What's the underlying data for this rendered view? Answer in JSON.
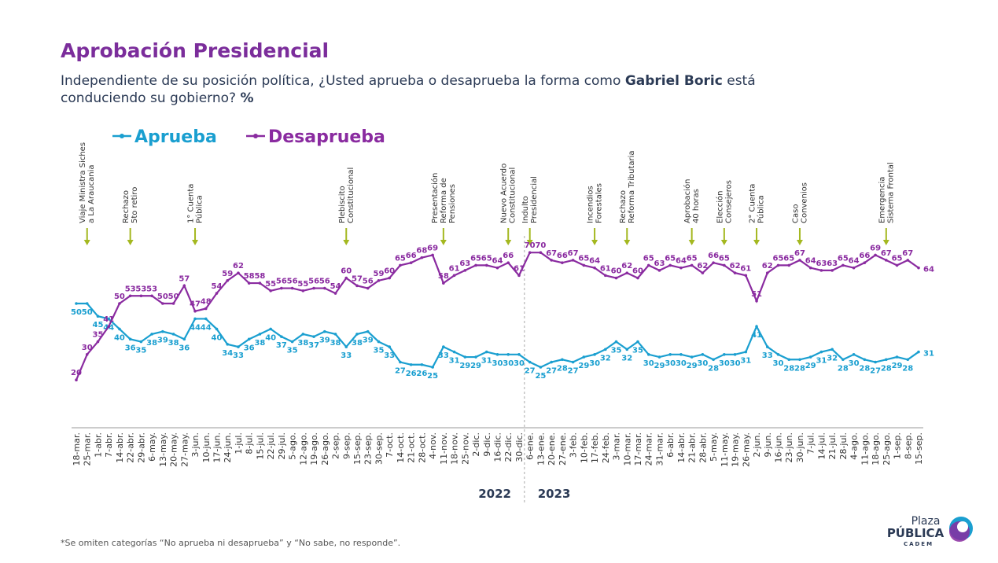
{
  "chart_data": {
    "type": "line",
    "title": "Aprobación Presidencial",
    "subtitle": [
      [
        {
          "text": "Independiente de su posición política, ¿Usted aprueba o desaprueba la forma como "
        },
        {
          "text": "Gabriel Boric",
          "bold": true
        },
        {
          "text": " está"
        }
      ],
      [
        {
          "text": "conduciendo su gobierno? "
        },
        {
          "text": "%",
          "bold": true
        }
      ]
    ],
    "categories": [
      "18-mar.",
      "25-mar.",
      "1-abr.",
      "7-abr.",
      "14-abr.",
      "22-abr.",
      "29-abr.",
      "6-may.",
      "13-may.",
      "20-may.",
      "27-may.",
      "3-jun.",
      "10-jun.",
      "17-jun.",
      "24-jun.",
      "1-jul.",
      "8-jul.",
      "15-jul.",
      "22-jul.",
      "29-jul.",
      "5-ago.",
      "12-ago.",
      "19-ago.",
      "26-ago.",
      "2-sep.",
      "9-sep.",
      "15-sep.",
      "23-sep.",
      "30-sep.",
      "7-oct.",
      "14-oct.",
      "21-oct.",
      "28-oct.",
      "4-nov.",
      "11-nov.",
      "18-nov.",
      "25-nov.",
      "2-dic.",
      "9-dic.",
      "16-dic.",
      "22-dic.",
      "30-dic.",
      "6-ene.",
      "13-ene.",
      "20-ene.",
      "27-ene.",
      "3-feb.",
      "10-feb.",
      "17-feb.",
      "24-feb.",
      "3-mar.",
      "10-mar.",
      "17-mar.",
      "24-mar.",
      "31-mar.",
      "6-abr.",
      "14-abr.",
      "21-abr.",
      "28-abr.",
      "5-may.",
      "11-may.",
      "19-may.",
      "26-may.",
      "2-jun.",
      "9-jun.",
      "16-jun.",
      "23-jun.",
      "30-jun.",
      "7-jul.",
      "14-jul.",
      "21-jul.",
      "28-jul.",
      "4-ago.",
      "11-ago.",
      "18-ago.",
      "25-ago.",
      "1-sep.",
      "8-sep.",
      "15-sep."
    ],
    "years": [
      {
        "label": "2022",
        "from": "18-mar.",
        "to": "30-dic."
      },
      {
        "label": "2023",
        "from": "6-ene.",
        "to": "15-sep."
      }
    ],
    "series": [
      {
        "name": "Aprueba",
        "color": "#1a9fd0",
        "values": [
          50,
          50,
          45,
          44,
          40,
          36,
          35,
          38,
          39,
          38,
          36,
          44,
          44,
          40,
          34,
          33,
          36,
          38,
          40,
          37,
          35,
          38,
          37,
          39,
          38,
          33,
          38,
          39,
          35,
          33,
          27,
          26,
          26,
          25,
          33,
          31,
          29,
          29,
          31,
          30,
          30,
          30,
          27,
          25,
          27,
          28,
          27,
          29,
          30,
          32,
          35,
          32,
          35,
          30,
          29,
          30,
          30,
          29,
          30,
          28,
          30,
          30,
          31,
          41,
          33,
          30,
          28,
          28,
          29,
          31,
          32,
          28,
          30,
          28,
          27,
          28,
          29,
          28,
          31
        ]
      },
      {
        "name": "Desaprueba",
        "color": "#8a2ba0",
        "values": [
          20,
          30,
          35,
          41,
          50,
          53,
          53,
          53,
          50,
          50,
          57,
          47,
          48,
          54,
          59,
          62,
          58,
          58,
          55,
          56,
          56,
          55,
          56,
          56,
          54,
          60,
          57,
          56,
          59,
          60,
          65,
          66,
          68,
          69,
          58,
          61,
          63,
          65,
          65,
          64,
          66,
          61,
          70,
          70,
          67,
          66,
          67,
          65,
          64,
          61,
          60,
          62,
          60,
          65,
          63,
          65,
          64,
          65,
          62,
          66,
          65,
          62,
          61,
          51,
          62,
          65,
          65,
          67,
          64,
          63,
          63,
          65,
          64,
          66,
          69,
          67,
          65,
          67,
          64
        ]
      }
    ],
    "annotations": [
      {
        "category": "25-mar.",
        "lines": [
          "Viaje Ministra Siches",
          "a La Araucania"
        ]
      },
      {
        "category": "22-abr.",
        "lines": [
          "Rechazo",
          "5to retiro"
        ]
      },
      {
        "category": "3-jun.",
        "lines": [
          "1° Cuenta",
          "Pública"
        ]
      },
      {
        "category": "9-sep.",
        "lines": [
          "Plebiscito",
          "Constitucional"
        ]
      },
      {
        "category": "11-nov.",
        "lines": [
          "Presentación",
          "Reforma de",
          "Pensiones"
        ]
      },
      {
        "category": "22-dic.",
        "lines": [
          "Nuevo Acuerdo",
          "Constitucional"
        ]
      },
      {
        "category": "6-ene.",
        "lines": [
          "Indulto",
          "Presidencial"
        ]
      },
      {
        "category": "17-feb.",
        "lines": [
          "Incendios",
          "Forestales"
        ]
      },
      {
        "category": "10-mar.",
        "lines": [
          "Rechazo",
          "Reforma Tributaria"
        ]
      },
      {
        "category": "21-abr.",
        "lines": [
          "Aprobación",
          "40 horas"
        ]
      },
      {
        "category": "11-may.",
        "lines": [
          "Elección",
          "Consejeros"
        ]
      },
      {
        "category": "2-jun.",
        "lines": [
          "2° Cuenta",
          "Pública"
        ]
      },
      {
        "category": "30-jun.",
        "lines": [
          "Caso",
          "Convenios"
        ]
      },
      {
        "category": "25-ago.",
        "lines": [
          "Emergencia",
          "Sistema Frontal"
        ]
      }
    ],
    "footnote": "*Se omiten categorías “No aprueba ni desaprueba” y “No sabe, no responde”.",
    "logo": {
      "top": "Plaza",
      "middle": "PÚBLICA",
      "bottom": "CADEM"
    }
  }
}
